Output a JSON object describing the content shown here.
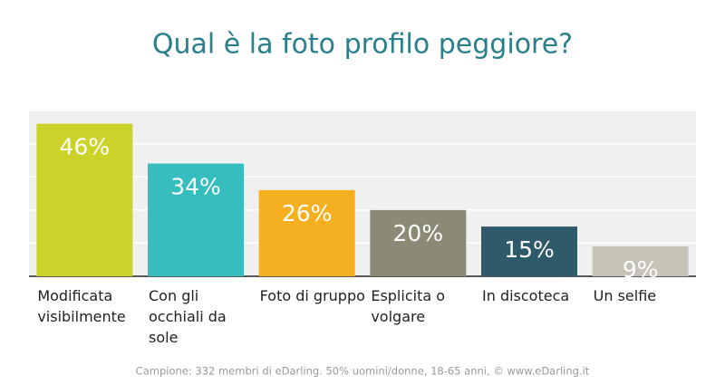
{
  "chart_data": {
    "type": "bar",
    "title": "Qual è la foto profilo peggiore?",
    "categories": [
      "Modificata visibilmente",
      "Con gli occhiali da sole",
      "Foto di gruppo",
      "Esplicita o volgare",
      "In discoteca",
      "Un selfie"
    ],
    "values": [
      46,
      34,
      26,
      20,
      15,
      9
    ],
    "value_labels": [
      "46%",
      "34%",
      "26%",
      "20%",
      "15%",
      "9%"
    ],
    "colors": [
      "#cbd32b",
      "#36bdbd",
      "#f4b021",
      "#8a8a77",
      "#2f5a69",
      "#c6c3b7"
    ],
    "ylim": [
      0,
      50
    ],
    "yticks": [
      0,
      10,
      20,
      30,
      40,
      50
    ],
    "grid": true,
    "footnote": "Campione: 332 membri di eDarling. 50% uomini/donne, 18-65 anni, © www.eDarling.it"
  }
}
